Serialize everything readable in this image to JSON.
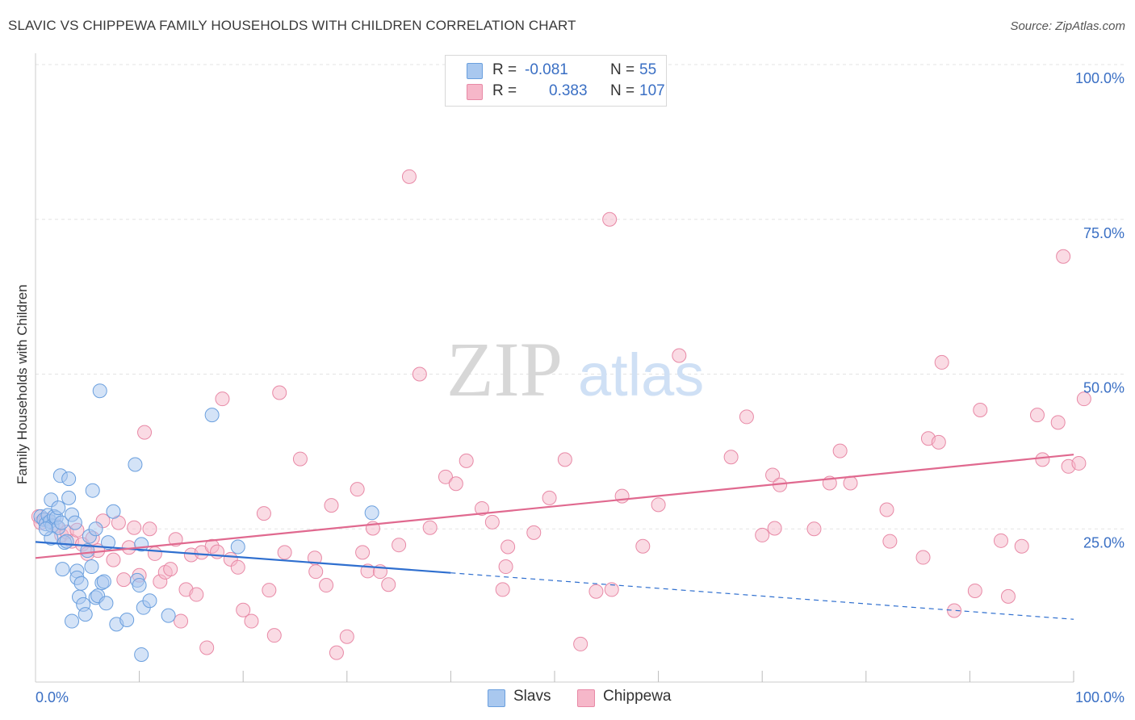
{
  "header": {
    "title": "SLAVIC VS CHIPPEWA FAMILY HOUSEHOLDS WITH CHILDREN CORRELATION CHART",
    "source": "Source: ZipAtlas.com"
  },
  "watermark": {
    "zip": "ZIP",
    "atlas": "atlas"
  },
  "legend": {
    "rows": [
      {
        "r_label": "R =",
        "r_value": "-0.081",
        "n_label": "N =",
        "n_value": "55",
        "color": "#a9c8ef"
      },
      {
        "r_label": "R =",
        "r_value": "0.383",
        "n_label": "N =",
        "n_value": "107",
        "color": "#f6b7c9"
      }
    ]
  },
  "bottom_legend": [
    {
      "label": "Slavs",
      "color": "#a9c8ef"
    },
    {
      "label": "Chippewa",
      "color": "#f6b7c9"
    }
  ],
  "colors": {
    "slavs_fill": "#a9c8ef",
    "slavs_stroke": "#6a9fde",
    "slavs_line": "#2f6fcf",
    "chippewa_fill": "#f6b7c9",
    "chippewa_stroke": "#e889a6",
    "chippewa_line": "#e0698f",
    "tick_label": "#3a6fc4",
    "grid": "#e3e3e3"
  },
  "chart_data": {
    "type": "scatter",
    "title": "SLAVIC VS CHIPPEWA FAMILY HOUSEHOLDS WITH CHILDREN CORRELATION CHART",
    "xlabel": "",
    "ylabel": "Family Households with Children",
    "xlim": [
      0,
      100
    ],
    "ylim": [
      0,
      100
    ],
    "x_tick_labels": [
      "0.0%",
      "100.0%"
    ],
    "y_ticks": [
      25,
      50,
      75,
      100
    ],
    "y_tick_labels": [
      "25.0%",
      "50.0%",
      "75.0%",
      "100.0%"
    ],
    "grid": true,
    "series": [
      {
        "name": "Slavs",
        "trend": {
          "x0": 0,
          "y0": 22.9,
          "x1": 40,
          "y1": 17.9,
          "x_end": 100,
          "y_end": 10.4,
          "solid_until": 40
        },
        "points": [
          [
            0.5,
            27.0
          ],
          [
            0.8,
            26.5
          ],
          [
            1.0,
            25.8
          ],
          [
            1.2,
            27.2
          ],
          [
            1.4,
            26.2
          ],
          [
            1.6,
            25.5
          ],
          [
            1.8,
            27.0
          ],
          [
            2.0,
            26.8
          ],
          [
            2.2,
            25.2
          ],
          [
            2.5,
            26.0
          ],
          [
            1.5,
            23.5
          ],
          [
            1.5,
            29.7
          ],
          [
            2.2,
            28.4
          ],
          [
            2.4,
            33.6
          ],
          [
            2.6,
            18.5
          ],
          [
            2.8,
            22.8
          ],
          [
            3.0,
            23.0
          ],
          [
            3.2,
            33.1
          ],
          [
            3.2,
            30.0
          ],
          [
            3.5,
            27.3
          ],
          [
            3.5,
            10.1
          ],
          [
            3.8,
            26.0
          ],
          [
            4.0,
            18.2
          ],
          [
            4.0,
            17.1
          ],
          [
            4.2,
            14.0
          ],
          [
            4.4,
            16.2
          ],
          [
            4.6,
            12.8
          ],
          [
            4.8,
            11.2
          ],
          [
            5.0,
            21.5
          ],
          [
            5.2,
            23.8
          ],
          [
            5.4,
            18.9
          ],
          [
            5.5,
            31.2
          ],
          [
            5.8,
            25.0
          ],
          [
            5.8,
            13.9
          ],
          [
            6.0,
            14.2
          ],
          [
            6.2,
            47.3
          ],
          [
            6.4,
            16.3
          ],
          [
            6.6,
            16.5
          ],
          [
            6.8,
            13.0
          ],
          [
            7.0,
            22.8
          ],
          [
            7.5,
            27.8
          ],
          [
            7.8,
            9.6
          ],
          [
            8.8,
            10.3
          ],
          [
            9.6,
            35.4
          ],
          [
            9.8,
            16.7
          ],
          [
            10.0,
            15.9
          ],
          [
            10.2,
            22.5
          ],
          [
            10.4,
            12.3
          ],
          [
            10.2,
            4.7
          ],
          [
            11.0,
            13.4
          ],
          [
            12.8,
            11.0
          ],
          [
            17.0,
            43.4
          ],
          [
            19.5,
            22.1
          ],
          [
            32.4,
            27.6
          ],
          [
            1.0,
            25.0
          ]
        ]
      },
      {
        "name": "Chippewa",
        "trend": {
          "x0": 0,
          "y0": 20.3,
          "x1": 100,
          "y1": 37.0
        },
        "points": [
          [
            0.3,
            27.0
          ],
          [
            0.5,
            26.0
          ],
          [
            1.0,
            26.5
          ],
          [
            2.0,
            25.5
          ],
          [
            2.5,
            24.0
          ],
          [
            3.0,
            24.5
          ],
          [
            3.5,
            23.0
          ],
          [
            4.0,
            24.8
          ],
          [
            4.5,
            22.5
          ],
          [
            5.0,
            21.0
          ],
          [
            5.5,
            23.5
          ],
          [
            6.0,
            21.5
          ],
          [
            6.5,
            26.3
          ],
          [
            7.5,
            20.0
          ],
          [
            8.0,
            26.0
          ],
          [
            8.5,
            16.8
          ],
          [
            9.0,
            22.0
          ],
          [
            9.5,
            25.2
          ],
          [
            10.0,
            17.5
          ],
          [
            10.5,
            40.6
          ],
          [
            11.0,
            25.0
          ],
          [
            11.5,
            21.0
          ],
          [
            12.0,
            16.5
          ],
          [
            12.5,
            18.0
          ],
          [
            13.0,
            18.5
          ],
          [
            13.5,
            23.3
          ],
          [
            14.0,
            10.1
          ],
          [
            14.5,
            15.2
          ],
          [
            15.0,
            20.8
          ],
          [
            15.5,
            14.4
          ],
          [
            16.0,
            21.2
          ],
          [
            16.5,
            5.8
          ],
          [
            17.0,
            22.2
          ],
          [
            17.5,
            21.3
          ],
          [
            18.0,
            46.0
          ],
          [
            18.8,
            20.1
          ],
          [
            19.5,
            18.8
          ],
          [
            20.0,
            11.9
          ],
          [
            20.8,
            10.1
          ],
          [
            22.0,
            27.5
          ],
          [
            22.5,
            15.1
          ],
          [
            23.0,
            7.8
          ],
          [
            23.5,
            47.0
          ],
          [
            24.0,
            21.2
          ],
          [
            25.5,
            36.3
          ],
          [
            26.9,
            20.3
          ],
          [
            27.0,
            18.1
          ],
          [
            28.0,
            15.9
          ],
          [
            28.5,
            28.8
          ],
          [
            29.0,
            5.0
          ],
          [
            30.0,
            7.6
          ],
          [
            31.0,
            31.4
          ],
          [
            31.5,
            21.2
          ],
          [
            32.0,
            18.2
          ],
          [
            32.5,
            25.1
          ],
          [
            33.2,
            18.1
          ],
          [
            34.0,
            16.0
          ],
          [
            35.0,
            22.4
          ],
          [
            36.0,
            81.9
          ],
          [
            37.0,
            50.0
          ],
          [
            38.0,
            25.2
          ],
          [
            39.5,
            33.4
          ],
          [
            40.5,
            32.3
          ],
          [
            41.5,
            36.0
          ],
          [
            43.0,
            28.3
          ],
          [
            44.0,
            26.1
          ],
          [
            45.0,
            15.2
          ],
          [
            45.5,
            22.1
          ],
          [
            45.3,
            18.9
          ],
          [
            48.0,
            24.4
          ],
          [
            49.5,
            30.0
          ],
          [
            51.0,
            36.2
          ],
          [
            52.5,
            6.4
          ],
          [
            54.0,
            14.9
          ],
          [
            55.5,
            15.2
          ],
          [
            55.3,
            75.0
          ],
          [
            56.5,
            30.3
          ],
          [
            58.5,
            22.2
          ],
          [
            60.0,
            28.9
          ],
          [
            62.0,
            53.0
          ],
          [
            67.0,
            36.6
          ],
          [
            68.5,
            43.1
          ],
          [
            70.0,
            24.0
          ],
          [
            71.0,
            33.7
          ],
          [
            71.7,
            32.1
          ],
          [
            71.2,
            25.1
          ],
          [
            75.0,
            25.0
          ],
          [
            76.5,
            32.4
          ],
          [
            77.5,
            37.6
          ],
          [
            78.5,
            32.4
          ],
          [
            82.0,
            28.1
          ],
          [
            82.3,
            23.0
          ],
          [
            85.5,
            20.4
          ],
          [
            86.0,
            39.6
          ],
          [
            87.0,
            39.0
          ],
          [
            87.3,
            51.9
          ],
          [
            88.5,
            11.8
          ],
          [
            90.5,
            15.0
          ],
          [
            91.0,
            44.2
          ],
          [
            93.0,
            23.1
          ],
          [
            93.7,
            14.1
          ],
          [
            95.0,
            22.2
          ],
          [
            96.5,
            43.4
          ],
          [
            97.0,
            36.2
          ],
          [
            98.5,
            42.2
          ],
          [
            99.0,
            69.0
          ],
          [
            99.5,
            35.1
          ],
          [
            100.5,
            35.6
          ],
          [
            101.0,
            46.0
          ]
        ]
      }
    ]
  }
}
